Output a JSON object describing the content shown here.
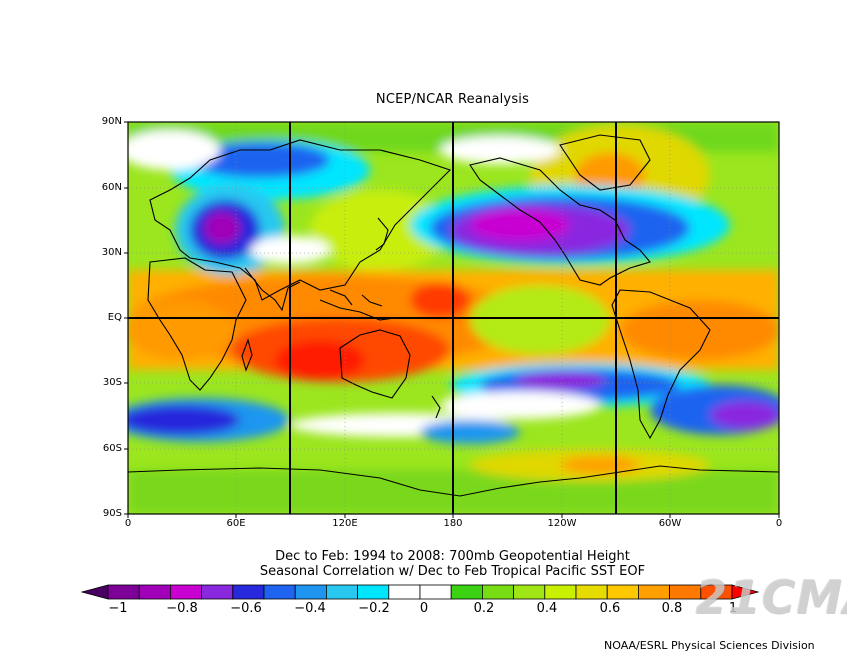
{
  "title": "NCEP/NCAR Reanalysis",
  "y_axis_labels": [
    "90N",
    "60N",
    "30N",
    "EQ",
    "30S",
    "60S",
    "90S"
  ],
  "x_axis_labels": [
    "0",
    "60E",
    "120E",
    "180",
    "120W",
    "60W",
    "0"
  ],
  "caption_line1": "Dec to Feb: 1994 to 2008: 700mb Geopotential Height",
  "caption_line2": "Seasonal Correlation w/ Dec to Feb Tropical Pacific SST EOF",
  "colorbar": {
    "labels": [
      "−1",
      "−0.8",
      "−0.6",
      "−0.4",
      "−0.2",
      "0",
      "0.2",
      "0.4",
      "0.6",
      "0.8",
      "1"
    ],
    "colors": [
      "#4a0060",
      "#7d0099",
      "#a000b8",
      "#c800d2",
      "#8a28e0",
      "#2828dc",
      "#1e64f0",
      "#1e96f0",
      "#28c8f0",
      "#00e6ff",
      "#ffffff",
      "#ffffff",
      "#3cd214",
      "#78dc14",
      "#a0e614",
      "#c8f000",
      "#e6dc00",
      "#ffc800",
      "#ffa000",
      "#ff7800",
      "#ff5000",
      "#ff0000"
    ]
  },
  "credit": "NOAA/ESRL Physical Sciences Division",
  "watermark": "21CMA"
}
